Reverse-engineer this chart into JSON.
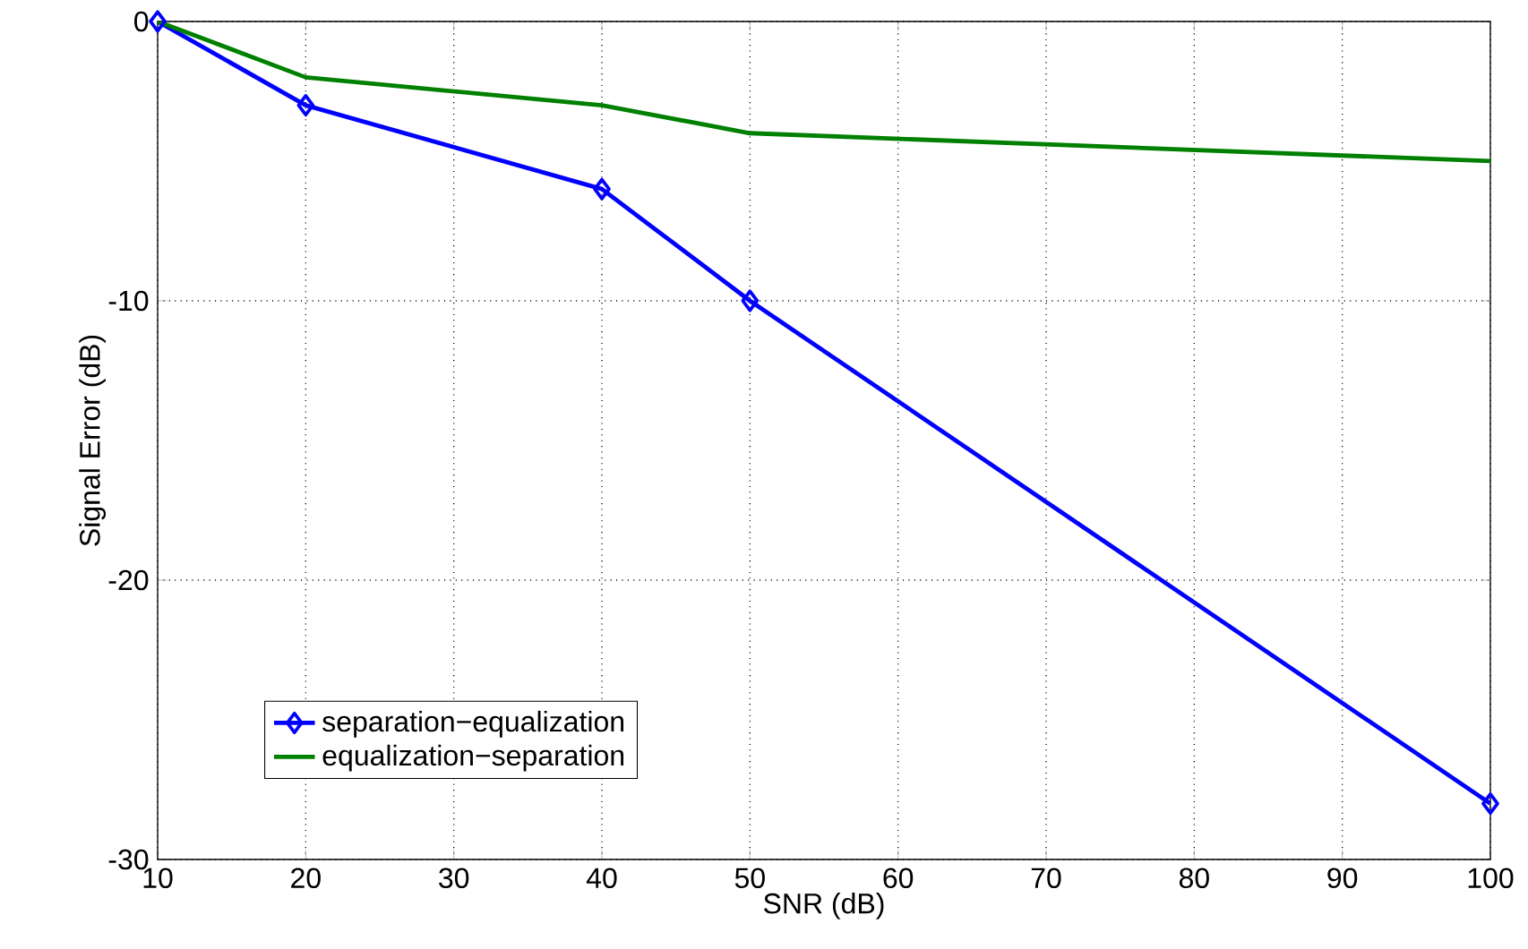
{
  "chart_data": {
    "type": "line",
    "xlabel": "SNR (dB)",
    "ylabel": "Signal Error (dB)",
    "x": [
      10,
      20,
      40,
      50,
      100
    ],
    "series": [
      {
        "name": "separation−equalization",
        "color": "#0000ff",
        "marker": "diamond",
        "values": [
          0,
          -3,
          -6,
          -10,
          -28
        ]
      },
      {
        "name": "equalization−separation",
        "color": "#008000",
        "marker": "none",
        "values": [
          0,
          -2,
          -3,
          -4,
          -5
        ]
      }
    ],
    "xlim": [
      10,
      100
    ],
    "ylim": [
      -30,
      0
    ],
    "xticks": [
      10,
      20,
      30,
      40,
      50,
      60,
      70,
      80,
      90,
      100
    ],
    "yticks": [
      -30,
      -20,
      -10,
      0
    ],
    "grid": true,
    "legend": "bottom left",
    "line_style": "solid"
  }
}
